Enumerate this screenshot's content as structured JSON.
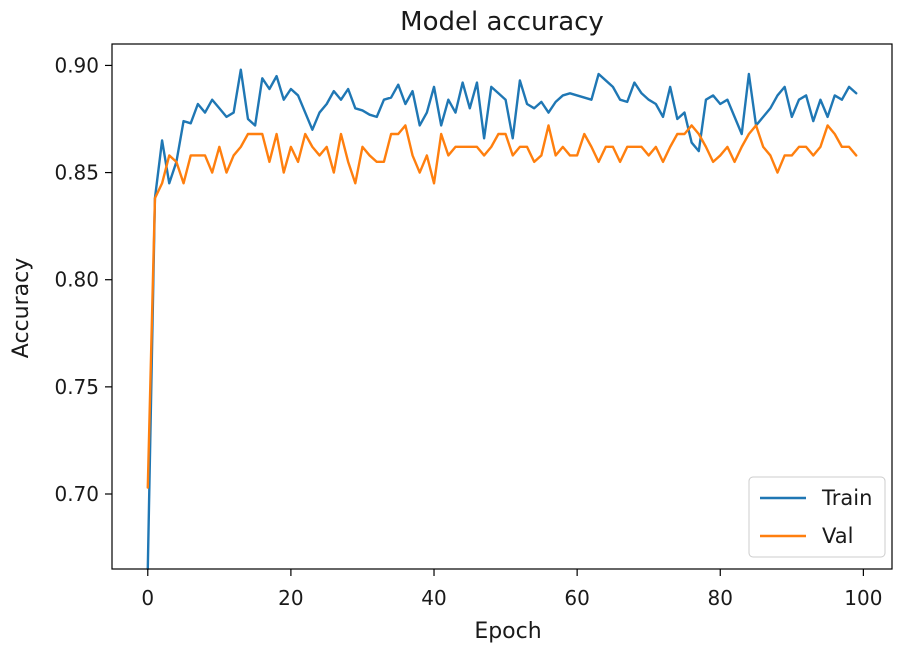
{
  "chart_data": {
    "type": "line",
    "title": "Model accuracy",
    "xlabel": "Epoch",
    "ylabel": "Accuracy",
    "xlim": [
      -5,
      104
    ],
    "ylim": [
      0.665,
      0.91
    ],
    "xticks": [
      0,
      20,
      40,
      60,
      80,
      100
    ],
    "xtick_labels": [
      "0",
      "20",
      "40",
      "60",
      "80",
      "100"
    ],
    "yticks": [
      0.7,
      0.75,
      0.8,
      0.85,
      0.9
    ],
    "ytick_labels": [
      "0.70",
      "0.75",
      "0.80",
      "0.85",
      "0.90"
    ],
    "grid": false,
    "legend": "lower-right",
    "x": [
      0,
      1,
      2,
      3,
      4,
      5,
      6,
      7,
      8,
      9,
      10,
      11,
      12,
      13,
      14,
      15,
      16,
      17,
      18,
      19,
      20,
      21,
      22,
      23,
      24,
      25,
      26,
      27,
      28,
      29,
      30,
      31,
      32,
      33,
      34,
      35,
      36,
      37,
      38,
      39,
      40,
      41,
      42,
      43,
      44,
      45,
      46,
      47,
      48,
      49,
      50,
      51,
      52,
      53,
      54,
      55,
      56,
      57,
      58,
      59,
      60,
      61,
      62,
      63,
      64,
      65,
      66,
      67,
      68,
      69,
      70,
      71,
      72,
      73,
      74,
      75,
      76,
      77,
      78,
      79,
      80,
      81,
      82,
      83,
      84,
      85,
      86,
      87,
      88,
      89,
      90,
      91,
      92,
      93,
      94,
      95,
      96,
      97,
      98,
      99
    ],
    "series": [
      {
        "name": "Train",
        "color": "#1f77b4",
        "values": [
          0.665,
          0.838,
          0.865,
          0.845,
          0.855,
          0.874,
          0.873,
          0.882,
          0.878,
          0.884,
          0.88,
          0.876,
          0.878,
          0.898,
          0.875,
          0.872,
          0.894,
          0.889,
          0.895,
          0.884,
          0.889,
          0.886,
          0.878,
          0.87,
          0.878,
          0.882,
          0.888,
          0.884,
          0.889,
          0.88,
          0.879,
          0.877,
          0.876,
          0.884,
          0.885,
          0.891,
          0.882,
          0.888,
          0.872,
          0.878,
          0.89,
          0.872,
          0.884,
          0.878,
          0.892,
          0.88,
          0.892,
          0.866,
          0.89,
          0.887,
          0.884,
          0.866,
          0.893,
          0.882,
          0.88,
          0.883,
          0.878,
          0.883,
          0.886,
          0.887,
          0.886,
          0.885,
          0.884,
          0.896,
          0.893,
          0.89,
          0.884,
          0.883,
          0.892,
          0.887,
          0.884,
          0.882,
          0.876,
          0.89,
          0.875,
          0.878,
          0.864,
          0.86,
          0.884,
          0.886,
          0.882,
          0.884,
          0.876,
          0.868,
          0.896,
          0.872,
          0.876,
          0.88,
          0.886,
          0.89,
          0.876,
          0.884,
          0.886,
          0.874,
          0.884,
          0.876,
          0.886,
          0.884,
          0.89,
          0.887
        ]
      },
      {
        "name": "Val",
        "color": "#ff7f0e",
        "values": [
          0.703,
          0.838,
          0.845,
          0.858,
          0.855,
          0.845,
          0.858,
          0.858,
          0.858,
          0.85,
          0.862,
          0.85,
          0.858,
          0.862,
          0.868,
          0.868,
          0.868,
          0.855,
          0.868,
          0.85,
          0.862,
          0.855,
          0.868,
          0.862,
          0.858,
          0.862,
          0.85,
          0.868,
          0.855,
          0.845,
          0.862,
          0.858,
          0.855,
          0.855,
          0.868,
          0.868,
          0.872,
          0.858,
          0.85,
          0.858,
          0.845,
          0.868,
          0.858,
          0.862,
          0.862,
          0.862,
          0.862,
          0.858,
          0.862,
          0.868,
          0.868,
          0.858,
          0.862,
          0.862,
          0.855,
          0.858,
          0.872,
          0.858,
          0.862,
          0.858,
          0.858,
          0.868,
          0.862,
          0.855,
          0.862,
          0.862,
          0.855,
          0.862,
          0.862,
          0.862,
          0.858,
          0.862,
          0.855,
          0.862,
          0.868,
          0.868,
          0.872,
          0.868,
          0.862,
          0.855,
          0.858,
          0.862,
          0.855,
          0.862,
          0.868,
          0.872,
          0.862,
          0.858,
          0.85,
          0.858,
          0.858,
          0.862,
          0.862,
          0.858,
          0.862,
          0.872,
          0.868,
          0.862,
          0.862,
          0.858
        ]
      }
    ]
  }
}
